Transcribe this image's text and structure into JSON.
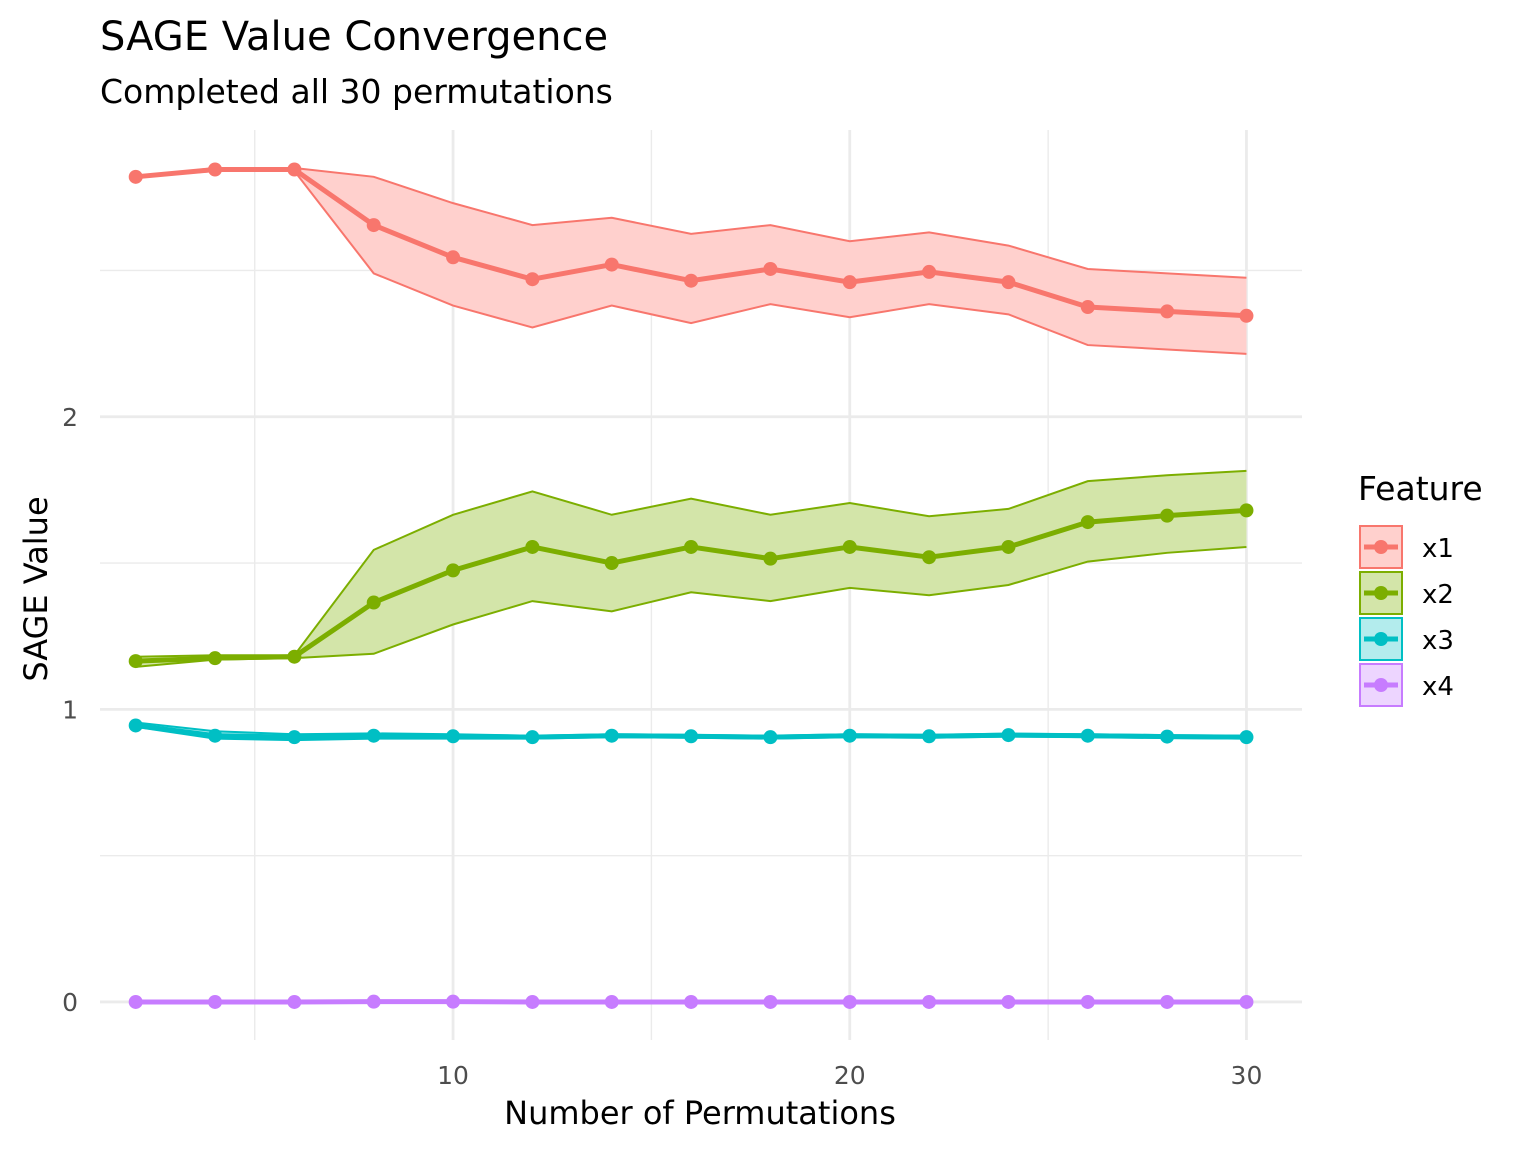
{
  "chart_data": {
    "type": "line",
    "title": "SAGE Value Convergence",
    "subtitle": "Completed all 30 permutations",
    "xlabel": "Number of Permutations",
    "ylabel": "SAGE Value",
    "xlim": [
      1.1,
      31.4
    ],
    "ylim": [
      -0.13,
      2.98
    ],
    "x_ticks": [
      10,
      20,
      30
    ],
    "x_tick_labels": [
      "10",
      "20",
      "30"
    ],
    "y_ticks": [
      0,
      1,
      2
    ],
    "y_tick_labels": [
      "0",
      "1",
      "2"
    ],
    "x_minor": [
      5,
      15,
      25
    ],
    "y_minor": [
      0.5,
      1.5,
      2.5
    ],
    "grid": true,
    "legend": {
      "title": "Feature",
      "position": "right"
    },
    "x": [
      2,
      4,
      6,
      8,
      10,
      12,
      14,
      16,
      18,
      20,
      22,
      24,
      26,
      28,
      30
    ],
    "series": [
      {
        "name": "x1",
        "color": "#F8766D",
        "fill": "#FFD0CD",
        "values": [
          2.82,
          2.845,
          2.845,
          2.655,
          2.545,
          2.47,
          2.52,
          2.465,
          2.505,
          2.46,
          2.495,
          2.46,
          2.375,
          2.36,
          2.345
        ],
        "lower": [
          2.82,
          2.84,
          2.84,
          2.49,
          2.38,
          2.305,
          2.38,
          2.32,
          2.385,
          2.34,
          2.385,
          2.35,
          2.245,
          2.23,
          2.215
        ],
        "upper": [
          2.82,
          2.85,
          2.85,
          2.82,
          2.73,
          2.655,
          2.68,
          2.625,
          2.655,
          2.6,
          2.63,
          2.585,
          2.505,
          2.49,
          2.475
        ]
      },
      {
        "name": "x2",
        "color": "#7CAE00",
        "fill": "#D3E5A9",
        "values": [
          1.165,
          1.175,
          1.18,
          1.365,
          1.475,
          1.555,
          1.5,
          1.555,
          1.515,
          1.555,
          1.52,
          1.555,
          1.64,
          1.662,
          1.68
        ],
        "lower": [
          1.145,
          1.17,
          1.175,
          1.19,
          1.29,
          1.37,
          1.335,
          1.4,
          1.37,
          1.415,
          1.39,
          1.425,
          1.505,
          1.535,
          1.555
        ],
        "upper": [
          1.18,
          1.185,
          1.185,
          1.545,
          1.665,
          1.745,
          1.665,
          1.72,
          1.665,
          1.705,
          1.66,
          1.685,
          1.78,
          1.8,
          1.815
        ]
      },
      {
        "name": "x3",
        "color": "#00BFC4",
        "fill": "#B3ECED",
        "values": [
          0.945,
          0.91,
          0.905,
          0.91,
          0.908,
          0.905,
          0.91,
          0.908,
          0.905,
          0.91,
          0.908,
          0.912,
          0.91,
          0.907,
          0.905
        ],
        "lower": [
          0.94,
          0.9,
          0.895,
          0.9,
          0.9,
          0.9,
          0.905,
          0.903,
          0.9,
          0.905,
          0.903,
          0.907,
          0.905,
          0.902,
          0.9
        ],
        "upper": [
          0.955,
          0.925,
          0.915,
          0.918,
          0.915,
          0.91,
          0.915,
          0.913,
          0.91,
          0.915,
          0.913,
          0.917,
          0.915,
          0.912,
          0.91
        ]
      },
      {
        "name": "x4",
        "color": "#C77CFF",
        "fill": "#EDD5FF",
        "values": [
          0.0,
          0.0,
          0.0,
          0.001,
          0.001,
          0.0,
          0.0,
          0.0,
          0.0,
          0.0,
          0.0,
          0.0,
          0.0,
          0.0,
          0.0
        ],
        "lower": [
          0.0,
          0.0,
          0.0,
          0.0,
          0.0,
          0.0,
          0.0,
          0.0,
          0.0,
          0.0,
          0.0,
          0.0,
          0.0,
          0.0,
          0.0
        ],
        "upper": [
          0.0,
          0.0,
          0.0,
          0.002,
          0.002,
          0.0,
          0.0,
          0.0,
          0.0,
          0.0,
          0.0,
          0.0,
          0.0,
          0.0,
          0.0
        ]
      }
    ]
  }
}
